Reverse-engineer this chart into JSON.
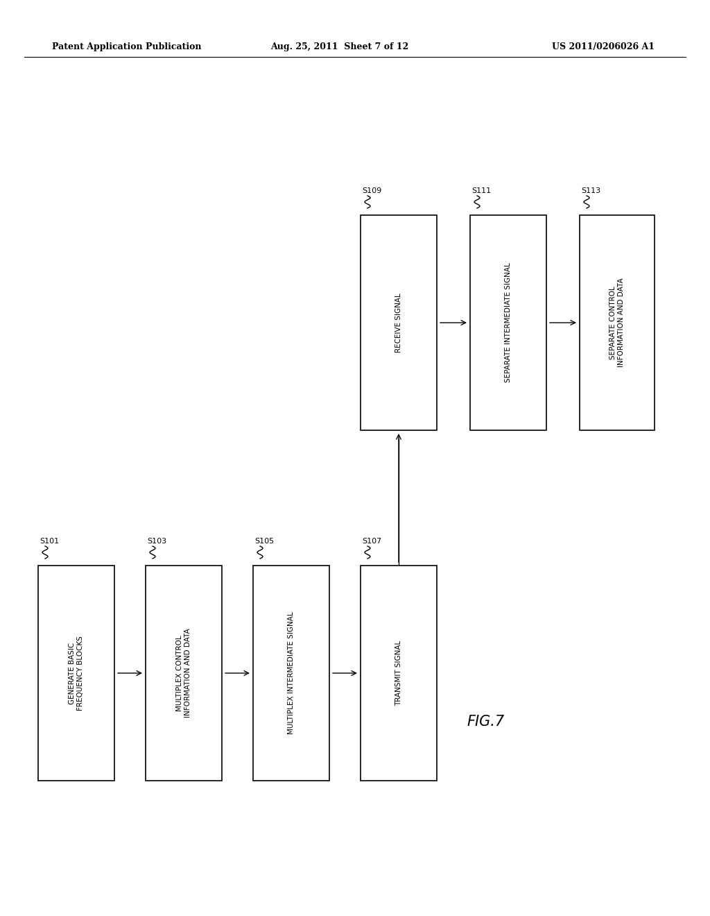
{
  "bg_color": "#ffffff",
  "header_left": "Patent Application Publication",
  "header_mid": "Aug. 25, 2011  Sheet 7 of 12",
  "header_right": "US 2011/0206026 A1",
  "figure_label": "FIG.7",
  "bottom_boxes": [
    {
      "label": "GENERATE BASIC\nFREQUENCY BLOCKS",
      "step": "S101"
    },
    {
      "label": "MULTIPLEX CONTROL\nINFORMATION AND DATA",
      "step": "S103"
    },
    {
      "label": "MULTIPLEX INTERMEDIATE SIGNAL",
      "step": "S105"
    },
    {
      "label": "TRANSMIT SIGNAL",
      "step": "S107"
    }
  ],
  "top_boxes": [
    {
      "label": "RECEIVE SIGNAL",
      "step": "S109"
    },
    {
      "label": "SEPARATE INTERMEDIATE SIGNAL",
      "step": "S111"
    },
    {
      "label": "SEPARATE CONTROL\nINFORMATION AND DATA",
      "step": "S113"
    }
  ],
  "font_size_box": 7.5,
  "font_size_step": 8,
  "font_size_header": 9,
  "font_size_fig": 15
}
